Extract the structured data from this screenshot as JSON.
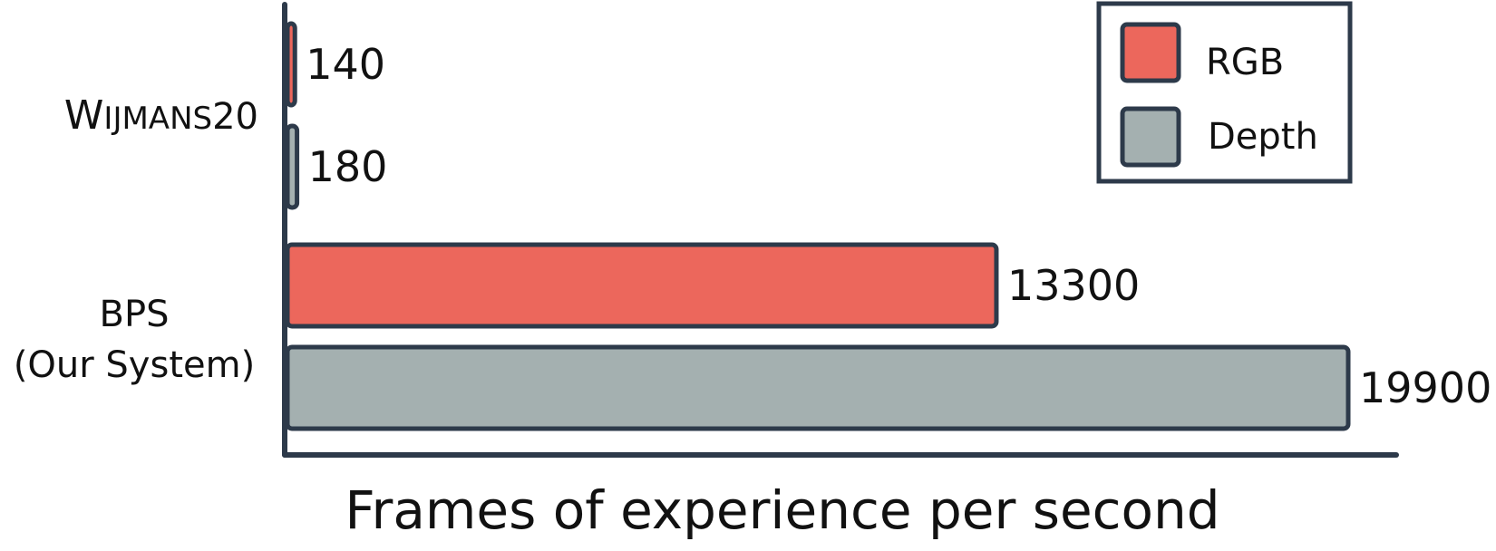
{
  "chart_data": {
    "type": "bar",
    "orientation": "horizontal",
    "categories": [
      {
        "line1_cap": "W",
        "line1_rest": "IJMANS",
        "line1_suffix": "20",
        "line2": ""
      },
      {
        "line1_cap": "",
        "line1_rest": "",
        "line1_suffix": "BPS",
        "line2": "(Our System)"
      }
    ],
    "series": [
      {
        "name": "RGB",
        "color": "#EC675C",
        "values": [
          140,
          13300
        ]
      },
      {
        "name": "Depth",
        "color": "#A4B0B0",
        "values": [
          180,
          19900
        ]
      }
    ],
    "value_labels": [
      [
        "140",
        "13300"
      ],
      [
        "180",
        "19900"
      ]
    ],
    "xlabel": "Frames of experience per second",
    "xlim": [
      0,
      19900
    ],
    "grid": false,
    "legend_position": "top-right",
    "edge_color": "#2D3A4A"
  }
}
